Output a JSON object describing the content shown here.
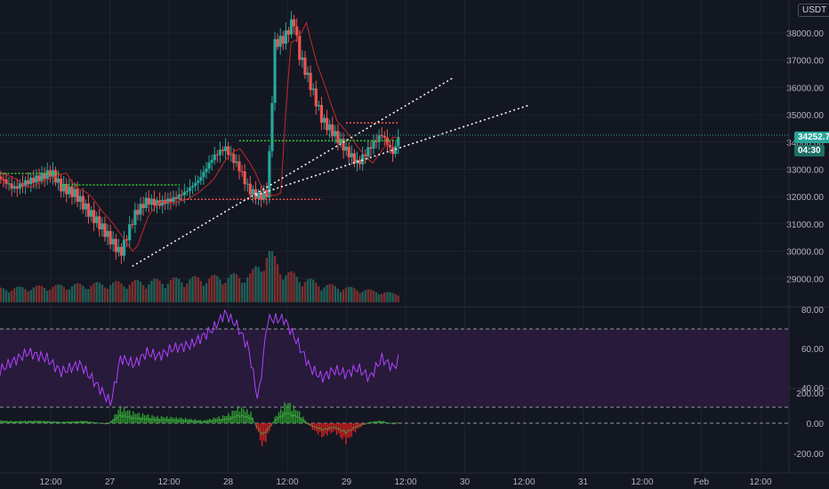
{
  "currency": "USDT",
  "price_badge": {
    "value": "34252.73",
    "countdown": "04:30"
  },
  "colors": {
    "background": "#131722",
    "grid": "#1e222d",
    "up": "#26a69a",
    "down": "#ef5350",
    "rsi": "#b042ff",
    "rsi_band": "#2a1b3d",
    "st_up": "#2e9e2e",
    "st_down": "#e02020"
  },
  "chart_data": [
    {
      "type": "candlestick",
      "panel": "price",
      "x_ticks": [
        "12:00",
        "27",
        "12:00",
        "28",
        "12:00",
        "29",
        "12:00",
        "30",
        "12:00",
        "31",
        "12:00",
        "Feb",
        "12:00"
      ],
      "y_ticks": [
        "38000.00",
        "37000.00",
        "36000.00",
        "35000.00",
        "34000.00",
        "33000.00",
        "32000.00",
        "31000.00",
        "30000.00",
        "29000.00"
      ],
      "ylim": [
        28700,
        39200
      ],
      "close_path": [
        [
          0,
          32850
        ],
        [
          0.05,
          32650
        ],
        [
          0.1,
          32300
        ],
        [
          0.16,
          32550
        ],
        [
          0.21,
          32700
        ],
        [
          0.26,
          32900
        ],
        [
          0.3,
          32350
        ],
        [
          0.36,
          32100
        ],
        [
          0.41,
          31500
        ],
        [
          0.46,
          31000
        ],
        [
          0.51,
          30400
        ],
        [
          0.55,
          29900
        ],
        [
          0.61,
          31350
        ],
        [
          0.66,
          31850
        ],
        [
          0.71,
          31750
        ],
        [
          0.77,
          31900
        ],
        [
          0.82,
          32150
        ],
        [
          0.88,
          32600
        ],
        [
          0.94,
          33450
        ],
        [
          0.99,
          33800
        ],
        [
          1.05,
          33050
        ],
        [
          1.09,
          32250
        ],
        [
          1.13,
          32000
        ],
        [
          1.17,
          32150
        ],
        [
          1.2,
          37600
        ],
        [
          1.24,
          37800
        ],
        [
          1.28,
          38500
        ],
        [
          1.3,
          37300
        ],
        [
          1.35,
          36100
        ],
        [
          1.4,
          34800
        ],
        [
          1.45,
          34300
        ],
        [
          1.5,
          33700
        ],
        [
          1.55,
          33200
        ],
        [
          1.6,
          33800
        ],
        [
          1.65,
          34300
        ],
        [
          1.7,
          33550
        ],
        [
          1.72,
          34200
        ]
      ],
      "volume_profile": [
        [
          0.0,
          0.2
        ],
        [
          0.4,
          0.3
        ],
        [
          0.6,
          0.35
        ],
        [
          1.1,
          0.5
        ],
        [
          1.17,
          1.0
        ],
        [
          1.25,
          0.55
        ],
        [
          1.4,
          0.3
        ],
        [
          1.72,
          0.1
        ]
      ],
      "day_ticks_x": [
        0.5,
        1.0,
        1.5,
        2.0,
        2.5,
        3.0
      ],
      "annotations": {
        "support_levels": [
          {
            "price": 32850,
            "x_from": 0.0,
            "x_to": 0.3
          },
          {
            "price": 32430,
            "x_from": 0.3,
            "x_to": 0.8
          },
          {
            "price": 31900,
            "x_from": 0.8,
            "x_to": 1.4
          },
          {
            "price": 34700,
            "x_from": 1.5,
            "x_to": 1.72
          },
          {
            "price": 34050,
            "x_from": 1.05,
            "x_to": 1.72
          }
        ],
        "trendlines": [
          {
            "from": [
              0.6,
              29450
            ],
            "to": [
              1.95,
              36350
            ]
          },
          {
            "from": [
              1.12,
              32050
            ],
            "to": [
              2.27,
              35350
            ]
          }
        ]
      }
    },
    {
      "type": "line",
      "panel": "rsi",
      "y_ticks": [
        "80.00",
        "60.00",
        "40.00"
      ],
      "ylim": [
        25,
        85
      ],
      "band": [
        30,
        70
      ],
      "path": [
        [
          0,
          45
        ],
        [
          0.08,
          52
        ],
        [
          0.16,
          58
        ],
        [
          0.24,
          55
        ],
        [
          0.3,
          48
        ],
        [
          0.38,
          52
        ],
        [
          0.46,
          40
        ],
        [
          0.51,
          32
        ],
        [
          0.55,
          55
        ],
        [
          0.61,
          52
        ],
        [
          0.66,
          58
        ],
        [
          0.71,
          56
        ],
        [
          0.77,
          60
        ],
        [
          0.85,
          62
        ],
        [
          0.94,
          70
        ],
        [
          0.99,
          78
        ],
        [
          1.04,
          72
        ],
        [
          1.09,
          60
        ],
        [
          1.13,
          33
        ],
        [
          1.17,
          75
        ],
        [
          1.24,
          75
        ],
        [
          1.3,
          62
        ],
        [
          1.35,
          50
        ],
        [
          1.4,
          45
        ],
        [
          1.45,
          49
        ],
        [
          1.5,
          47
        ],
        [
          1.55,
          50
        ],
        [
          1.6,
          45
        ],
        [
          1.65,
          55
        ],
        [
          1.7,
          50
        ],
        [
          1.72,
          54
        ]
      ]
    },
    {
      "type": "histogram",
      "panel": "momentum",
      "y_ticks": [
        "200.00",
        "0.00",
        "-200.00"
      ],
      "ylim": [
        -260,
        260
      ],
      "path": [
        [
          0,
          25
        ],
        [
          0.1,
          15
        ],
        [
          0.2,
          20
        ],
        [
          0.3,
          10
        ],
        [
          0.4,
          18
        ],
        [
          0.5,
          -10
        ],
        [
          0.55,
          120
        ],
        [
          0.6,
          80
        ],
        [
          0.7,
          50
        ],
        [
          0.8,
          40
        ],
        [
          0.9,
          20
        ],
        [
          1.0,
          60
        ],
        [
          1.05,
          120
        ],
        [
          1.1,
          80
        ],
        [
          1.15,
          -180
        ],
        [
          1.2,
          40
        ],
        [
          1.25,
          160
        ],
        [
          1.3,
          90
        ],
        [
          1.35,
          -30
        ],
        [
          1.4,
          -100
        ],
        [
          1.45,
          -60
        ],
        [
          1.5,
          -140
        ],
        [
          1.55,
          -40
        ],
        [
          1.6,
          10
        ],
        [
          1.65,
          20
        ],
        [
          1.7,
          -10
        ],
        [
          1.72,
          5
        ]
      ]
    }
  ]
}
